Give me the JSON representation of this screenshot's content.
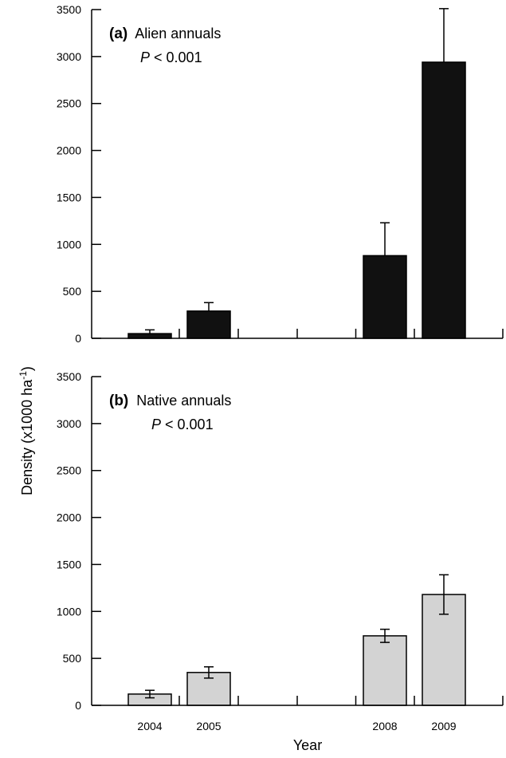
{
  "chart_data": [
    {
      "type": "bar",
      "panel_label": "(a)",
      "title": "Alien annuals",
      "p_prefix": "P",
      "p_suffix": " < 0.001",
      "categories": [
        "2004",
        "2005",
        "",
        "",
        "2008",
        "2009"
      ],
      "values": [
        50,
        290,
        null,
        null,
        880,
        2940
      ],
      "errors": [
        40,
        90,
        null,
        null,
        350,
        570
      ],
      "error_style": "upper",
      "bar_color": "#111111",
      "ylim": [
        0,
        3500
      ],
      "yticks": [
        0,
        500,
        1000,
        1500,
        2000,
        2500,
        3000,
        3500
      ]
    },
    {
      "type": "bar",
      "panel_label": "(b)",
      "title": "Native annuals",
      "p_prefix": "P",
      "p_suffix": " < 0.001",
      "categories": [
        "2004",
        "2005",
        "",
        "",
        "2008",
        "2009"
      ],
      "values": [
        120,
        350,
        null,
        null,
        740,
        1180
      ],
      "errors": [
        40,
        60,
        null,
        null,
        70,
        210
      ],
      "error_style": "both",
      "bar_color": "#d3d3d3",
      "ylim": [
        0,
        3500
      ],
      "yticks": [
        0,
        500,
        1000,
        1500,
        2000,
        2500,
        3000,
        3500
      ]
    }
  ],
  "axes": {
    "ylabel_main": "Density (x1000 ha",
    "ylabel_sup": "-1",
    "ylabel_close": ")",
    "xlabel": "Year"
  }
}
